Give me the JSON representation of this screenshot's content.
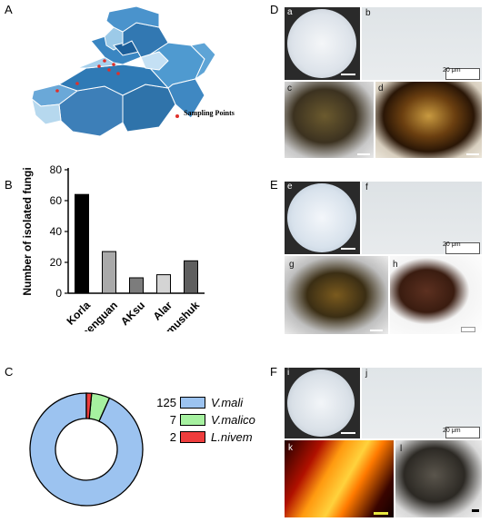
{
  "figure": {
    "panel_labels": {
      "A": "A",
      "B": "B",
      "C": "C",
      "D": "D",
      "E": "E",
      "F": "F"
    },
    "sub_labels": {
      "a": "a",
      "b": "b",
      "c": "c",
      "d": "d",
      "e": "e",
      "f": "f",
      "g": "g",
      "h": "h",
      "i": "i",
      "j": "j",
      "k": "k",
      "l": "l"
    },
    "scale_bars": {
      "b": "20 μm",
      "f": "20 μm",
      "j": "20 μm"
    },
    "map": {
      "legend_label": "Sampling Points",
      "point_color": "#e0302a"
    }
  },
  "chart_data": [
    {
      "type": "bar",
      "categories": [
        "Korla",
        "Tiemenguan",
        "AKsu",
        "Alar",
        "Tumushuk"
      ],
      "values": [
        64,
        27,
        10,
        12,
        21
      ],
      "colors": [
        "#000000",
        "#a9a9a9",
        "#7c7c7c",
        "#d4d4d4",
        "#5f5f5f"
      ],
      "title": "",
      "xlabel": "",
      "ylabel": "Number of isolated fungi",
      "ylim": [
        0,
        80
      ],
      "yticks": [
        0,
        20,
        40,
        60,
        80
      ]
    },
    {
      "type": "pie",
      "subtype": "donut",
      "categories": [
        "V.mali",
        "V.malico",
        "L.nivem"
      ],
      "values": [
        125,
        7,
        2
      ],
      "colors": [
        "#9cc3f0",
        "#a6f1a0",
        "#ee3d3d"
      ]
    }
  ]
}
